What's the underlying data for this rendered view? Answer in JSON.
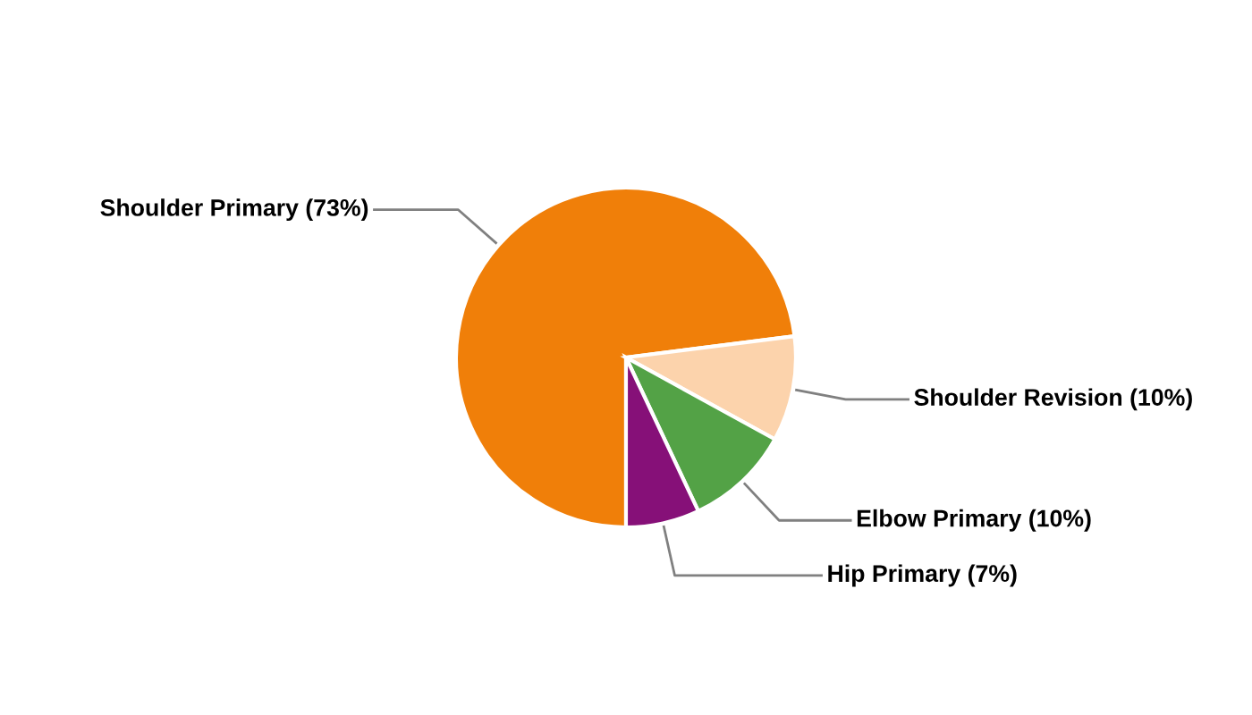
{
  "chart_data": {
    "type": "pie",
    "categories": [
      "Shoulder Primary",
      "Shoulder Revision",
      "Elbow Primary",
      "Hip Primary"
    ],
    "values": [
      73,
      10,
      10,
      7
    ],
    "value_labels": [
      "(73%)",
      "(10%)",
      "(10%)",
      "(7%)"
    ],
    "colors": [
      "#f07f09",
      "#fcd3ac",
      "#53a246",
      "#861078"
    ]
  }
}
